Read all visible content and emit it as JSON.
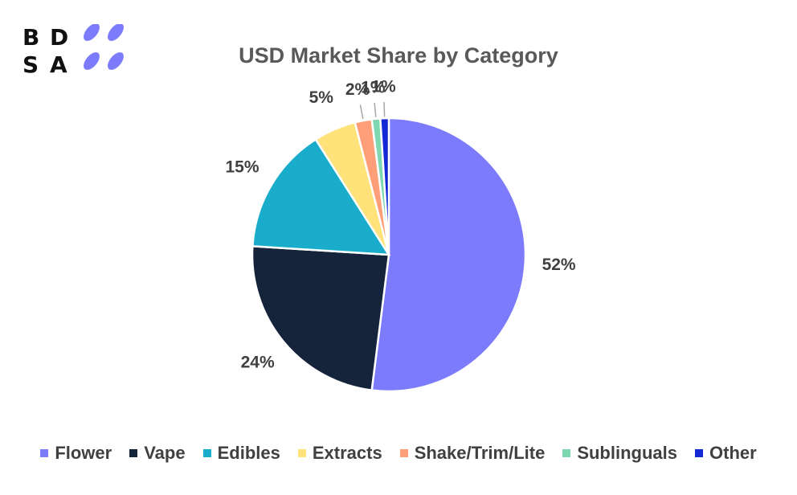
{
  "logo": {
    "letters": [
      "B",
      "D",
      "S",
      "A"
    ],
    "accent_color": "#7B7BFB"
  },
  "chart_data": {
    "type": "pie",
    "title": "USD Market Share by Category",
    "categories": [
      "Flower",
      "Vape",
      "Edibles",
      "Extracts",
      "Shake/Trim/Lite",
      "Sublinguals",
      "Other"
    ],
    "values": [
      52,
      24,
      15,
      5,
      2,
      1,
      1
    ],
    "data_labels": [
      "52%",
      "24%",
      "15%",
      "5%",
      "2%",
      "1%",
      "1%"
    ],
    "colors": [
      "#7B7BFB",
      "#16243B",
      "#1AACCB",
      "#FFE27A",
      "#FF9F7A",
      "#7FD7B2",
      "#1428D6"
    ],
    "start": "12 o'clock",
    "direction": "clockwise",
    "legend_position": "bottom"
  }
}
